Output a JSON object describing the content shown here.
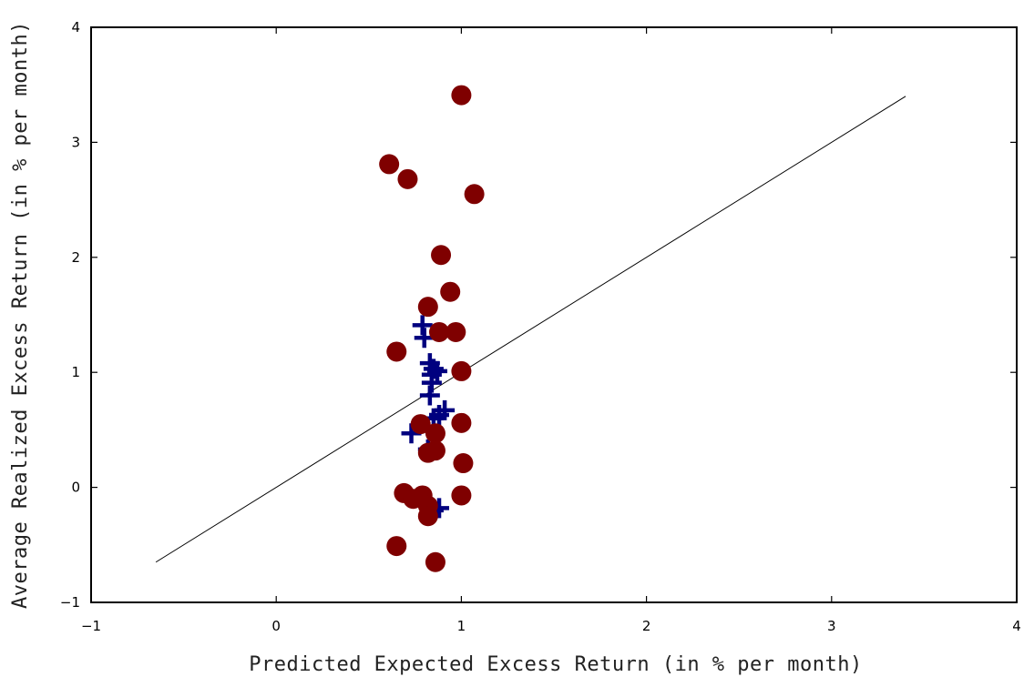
{
  "chart_data": {
    "type": "scatter",
    "title": "",
    "xlabel": "Predicted Expected Excess Return (in % per month)",
    "ylabel": "Average Realized Excess Return (in % per month)",
    "xlim": [
      -1,
      4
    ],
    "ylim": [
      -1,
      4
    ],
    "xticks": [
      -1,
      0,
      1,
      2,
      3,
      4
    ],
    "yticks": [
      -1,
      0,
      1,
      2,
      3,
      4
    ],
    "grid": false,
    "colors": {
      "circles": "#7f0000",
      "crosses": "#00007f",
      "line": "#000000"
    },
    "reference_line": {
      "x": [
        -0.65,
        3.4
      ],
      "y": [
        -0.65,
        3.4
      ]
    },
    "series": [
      {
        "marker": "circle",
        "x": [
          1.0,
          0.61,
          0.71,
          1.07,
          0.89,
          0.94,
          0.82,
          0.88,
          0.97,
          0.65,
          1.0,
          0.78,
          1.0,
          0.86,
          0.82,
          0.86,
          1.01,
          0.69,
          0.79,
          0.74,
          0.82,
          0.82,
          1.0,
          0.65,
          0.86
        ],
        "y": [
          3.41,
          2.81,
          2.68,
          2.55,
          2.02,
          1.7,
          1.57,
          1.35,
          1.35,
          1.18,
          1.01,
          0.55,
          0.56,
          0.47,
          0.3,
          0.32,
          0.21,
          -0.05,
          -0.07,
          -0.1,
          -0.16,
          -0.25,
          -0.07,
          -0.51,
          -0.65
        ]
      },
      {
        "marker": "plus",
        "x": [
          0.79,
          0.8,
          0.83,
          0.85,
          0.87,
          0.84,
          0.84,
          0.83,
          0.91,
          0.88,
          0.85,
          0.73,
          0.82,
          0.88,
          0.85
        ],
        "y": [
          1.41,
          1.3,
          1.08,
          1.03,
          1.01,
          0.98,
          0.91,
          0.8,
          0.67,
          0.63,
          0.6,
          0.47,
          0.33,
          -0.18,
          -0.2
        ]
      }
    ]
  }
}
